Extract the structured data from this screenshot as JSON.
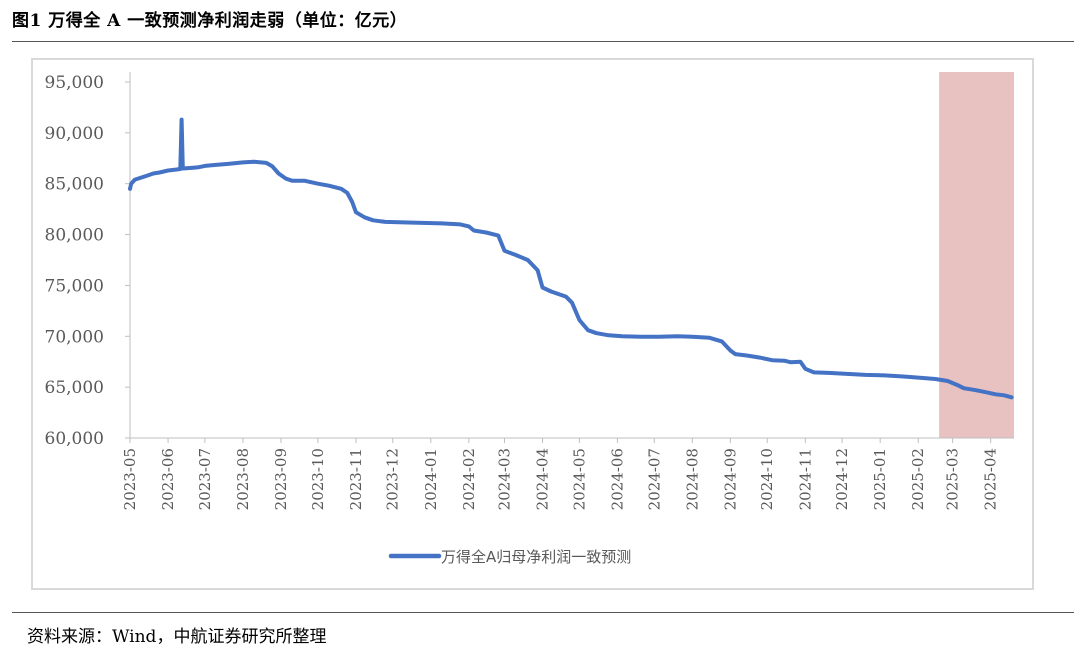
{
  "figure": {
    "title": "图1  万得全 A 一致预测净利润走弱（单位：亿元）",
    "source": "资料来源：Wind，中航证券研究所整理"
  },
  "chart_data": {
    "type": "line",
    "title": "",
    "xlabel": "",
    "ylabel": "",
    "ylim": [
      60000,
      95000
    ],
    "yticks": [
      "60,000",
      "65,000",
      "70,000",
      "75,000",
      "80,000",
      "85,000",
      "90,000",
      "95,000"
    ],
    "xticks": [
      "2023-05",
      "2023-06",
      "2023-07",
      "2023-08",
      "2023-09",
      "2023-10",
      "2023-11",
      "2023-12",
      "2024-01",
      "2024-02",
      "2024-03",
      "2024-04",
      "2024-05",
      "2024-06",
      "2024-07",
      "2024-08",
      "2024-09",
      "2024-10",
      "2024-11",
      "2024-12",
      "2025-01",
      "2025-02",
      "2025-03",
      "2025-04"
    ],
    "legend_position": "bottom",
    "grid": false,
    "highlight": {
      "x_from": "2025-02-18",
      "x_to": "2025-04-20",
      "color": "#e8c1c1"
    },
    "series": [
      {
        "name": "万得全A归母净利润一致预测",
        "color": "#4472c4",
        "points": [
          [
            "2023-05-01",
            84500
          ],
          [
            "2023-05-02",
            85000
          ],
          [
            "2023-05-05",
            85400
          ],
          [
            "2023-05-10",
            85600
          ],
          [
            "2023-05-15",
            85800
          ],
          [
            "2023-05-20",
            86000
          ],
          [
            "2023-05-25",
            86100
          ],
          [
            "2023-06-01",
            86300
          ],
          [
            "2023-06-08",
            86400
          ],
          [
            "2023-06-11",
            86450
          ],
          [
            "2023-06-12",
            91300
          ],
          [
            "2023-06-13",
            86500
          ],
          [
            "2023-06-20",
            86550
          ],
          [
            "2023-06-25",
            86600
          ],
          [
            "2023-07-01",
            86750
          ],
          [
            "2023-07-10",
            86850
          ],
          [
            "2023-07-20",
            86950
          ],
          [
            "2023-08-01",
            87100
          ],
          [
            "2023-08-10",
            87150
          ],
          [
            "2023-08-20",
            87050
          ],
          [
            "2023-08-25",
            86700
          ],
          [
            "2023-08-30",
            86000
          ],
          [
            "2023-09-05",
            85500
          ],
          [
            "2023-09-10",
            85300
          ],
          [
            "2023-09-20",
            85300
          ],
          [
            "2023-10-01",
            85000
          ],
          [
            "2023-10-10",
            84800
          ],
          [
            "2023-10-20",
            84500
          ],
          [
            "2023-10-25",
            84100
          ],
          [
            "2023-10-29",
            83200
          ],
          [
            "2023-11-01",
            82200
          ],
          [
            "2023-11-08",
            81700
          ],
          [
            "2023-11-15",
            81400
          ],
          [
            "2023-11-25",
            81250
          ],
          [
            "2023-12-10",
            81200
          ],
          [
            "2023-12-25",
            81150
          ],
          [
            "2024-01-10",
            81100
          ],
          [
            "2024-01-25",
            81000
          ],
          [
            "2024-02-01",
            80800
          ],
          [
            "2024-02-05",
            80400
          ],
          [
            "2024-02-15",
            80200
          ],
          [
            "2024-02-25",
            79900
          ],
          [
            "2024-03-01",
            78400
          ],
          [
            "2024-03-10",
            78000
          ],
          [
            "2024-03-20",
            77500
          ],
          [
            "2024-03-28",
            76500
          ],
          [
            "2024-04-01",
            74800
          ],
          [
            "2024-04-08",
            74400
          ],
          [
            "2024-04-20",
            73900
          ],
          [
            "2024-04-25",
            73300
          ],
          [
            "2024-05-01",
            71600
          ],
          [
            "2024-05-08",
            70600
          ],
          [
            "2024-05-15",
            70300
          ],
          [
            "2024-05-25",
            70100
          ],
          [
            "2024-06-05",
            70000
          ],
          [
            "2024-06-20",
            69950
          ],
          [
            "2024-07-05",
            69950
          ],
          [
            "2024-07-20",
            70000
          ],
          [
            "2024-08-01",
            69950
          ],
          [
            "2024-08-15",
            69850
          ],
          [
            "2024-08-25",
            69500
          ],
          [
            "2024-09-01",
            68600
          ],
          [
            "2024-09-05",
            68250
          ],
          [
            "2024-09-15",
            68100
          ],
          [
            "2024-09-25",
            67900
          ],
          [
            "2024-10-05",
            67650
          ],
          [
            "2024-10-15",
            67600
          ],
          [
            "2024-10-20",
            67450
          ],
          [
            "2024-10-28",
            67500
          ],
          [
            "2024-11-01",
            66800
          ],
          [
            "2024-11-08",
            66450
          ],
          [
            "2024-11-20",
            66400
          ],
          [
            "2024-12-05",
            66300
          ],
          [
            "2024-12-20",
            66200
          ],
          [
            "2025-01-05",
            66150
          ],
          [
            "2025-01-20",
            66050
          ],
          [
            "2025-02-05",
            65900
          ],
          [
            "2025-02-15",
            65800
          ],
          [
            "2025-02-25",
            65600
          ],
          [
            "2025-03-05",
            65200
          ],
          [
            "2025-03-10",
            64900
          ],
          [
            "2025-03-20",
            64700
          ],
          [
            "2025-03-28",
            64500
          ],
          [
            "2025-04-05",
            64300
          ],
          [
            "2025-04-12",
            64200
          ],
          [
            "2025-04-18",
            64000
          ]
        ]
      }
    ]
  }
}
